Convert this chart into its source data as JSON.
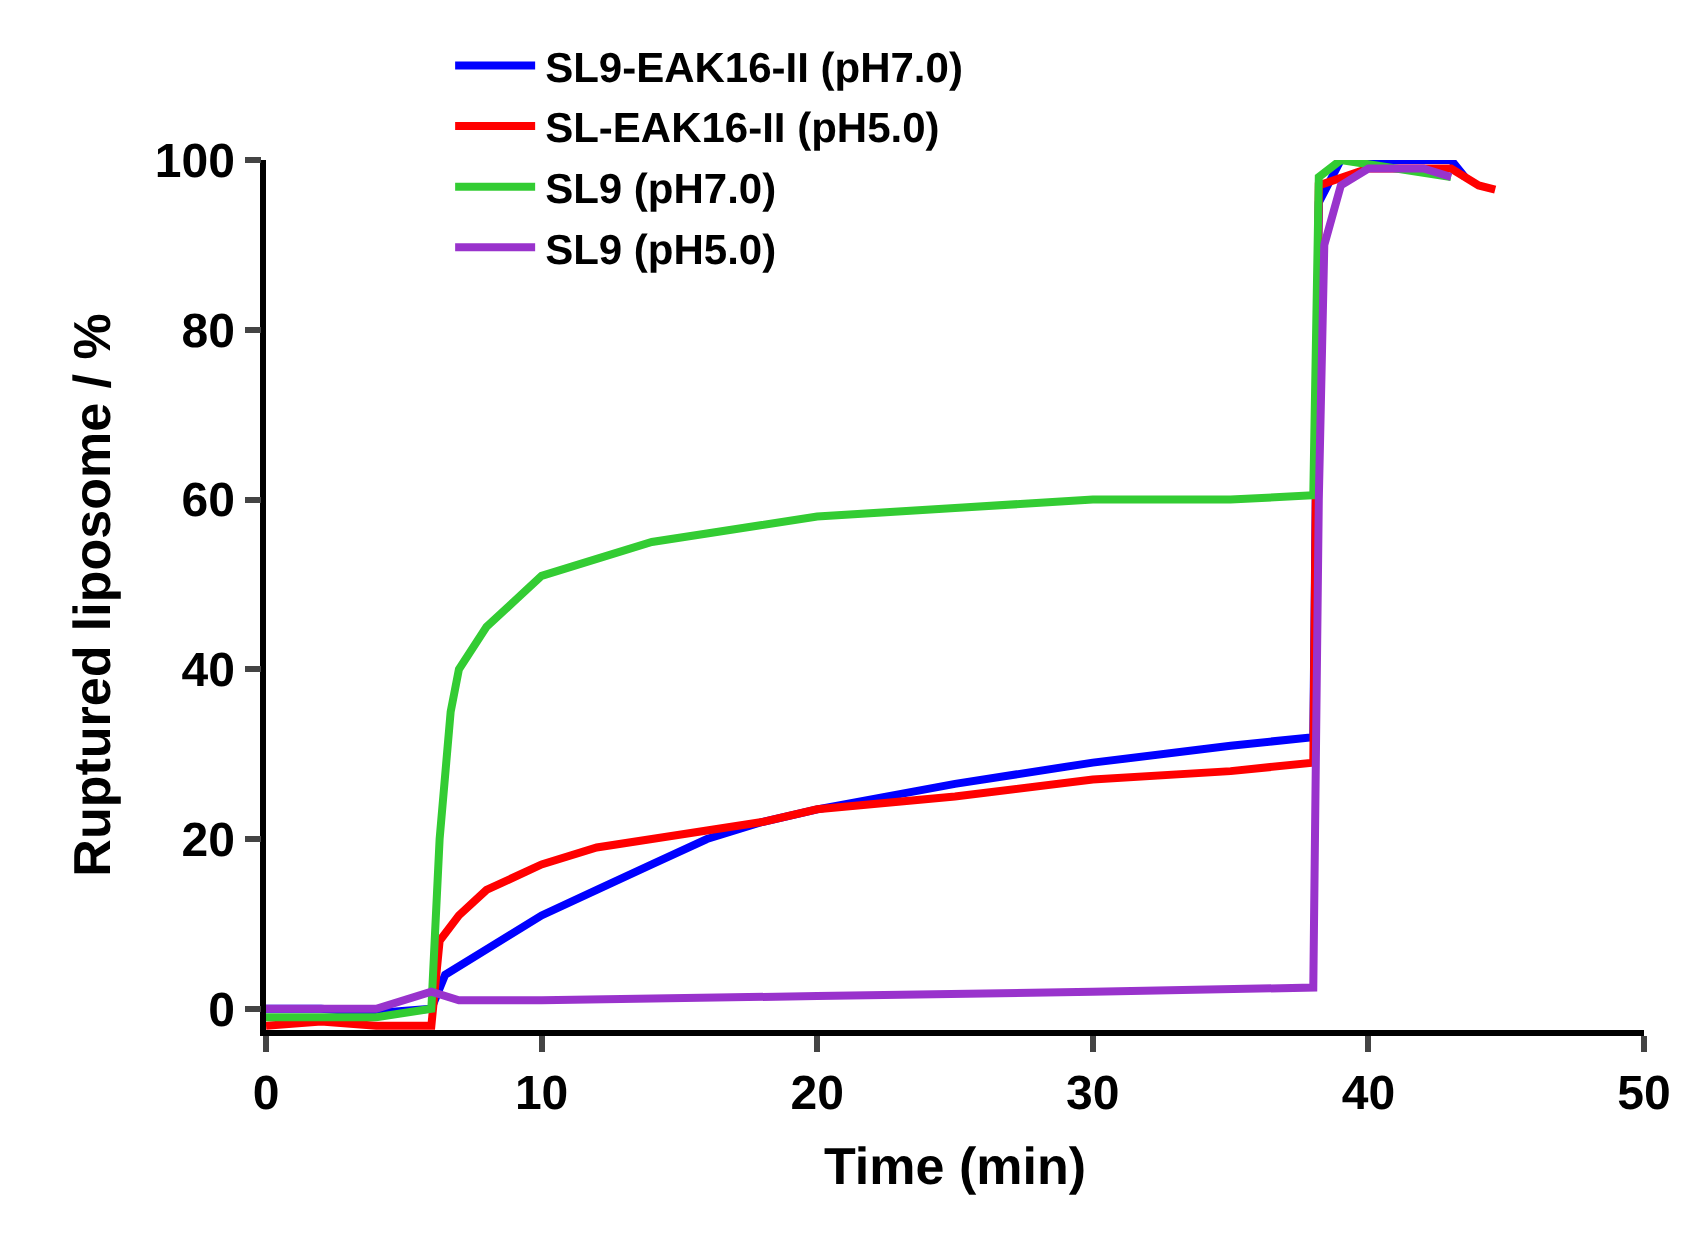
{
  "chart_data": {
    "type": "line",
    "xlabel": "Time (min)",
    "ylabel": "Ruptured liposome / %",
    "xlim": [
      0,
      50
    ],
    "xticks": [
      0,
      10,
      20,
      30,
      40,
      50
    ],
    "ylim": [
      -2.5,
      100
    ],
    "yticks": [
      0,
      20,
      40,
      60,
      80,
      100
    ],
    "legend": "top",
    "marker": "none",
    "line_style": "solid",
    "series": [
      {
        "name": "SL9-EAK16-II (pH7.0)",
        "color": "#0000ff",
        "x": [
          0,
          2,
          4,
          6,
          6.5,
          8,
          10,
          12,
          14,
          16,
          18,
          20,
          25,
          30,
          35,
          38,
          38.2,
          39,
          41,
          43,
          43.5
        ],
        "values": [
          0,
          0,
          -0.5,
          0,
          4,
          7,
          11,
          14,
          17,
          20,
          22,
          23.5,
          26.5,
          29,
          31,
          32,
          95,
          100,
          100,
          100,
          98
        ]
      },
      {
        "name": "SL-EAK16-II (pH5.0)",
        "color": "#ff0000",
        "x": [
          0,
          2,
          4,
          6,
          6.3,
          7,
          8,
          10,
          12,
          14,
          16,
          18,
          20,
          25,
          30,
          35,
          38,
          38.2,
          40,
          43,
          44,
          44.6
        ],
        "values": [
          -2,
          -1.5,
          -2,
          -2,
          8,
          11,
          14,
          17,
          19,
          20,
          21,
          22,
          23.5,
          25,
          27,
          28,
          29,
          97,
          99,
          99,
          97,
          96.5
        ]
      },
      {
        "name": "SL9 (pH7.0)",
        "color": "#33cc33",
        "x": [
          0,
          2,
          4,
          6,
          6.3,
          6.7,
          7,
          8,
          9,
          10,
          12,
          14,
          16,
          18,
          20,
          25,
          30,
          35,
          38,
          38.2,
          39,
          41,
          43
        ],
        "values": [
          -1,
          -1,
          -1,
          0,
          20,
          35,
          40,
          45,
          48,
          51,
          53,
          55,
          56,
          57,
          58,
          59,
          60,
          60,
          60.5,
          98,
          100,
          99,
          98
        ]
      },
      {
        "name": "SL9 (pH5.0)",
        "color": "#9933cc",
        "x": [
          0,
          2,
          4,
          6,
          7,
          10,
          20,
          30,
          38,
          38.2,
          38.4,
          39,
          40,
          42,
          43
        ],
        "values": [
          0,
          0,
          0,
          2,
          1,
          1,
          1.5,
          2,
          2.5,
          60,
          90,
          97,
          99,
          99,
          98
        ]
      }
    ]
  }
}
